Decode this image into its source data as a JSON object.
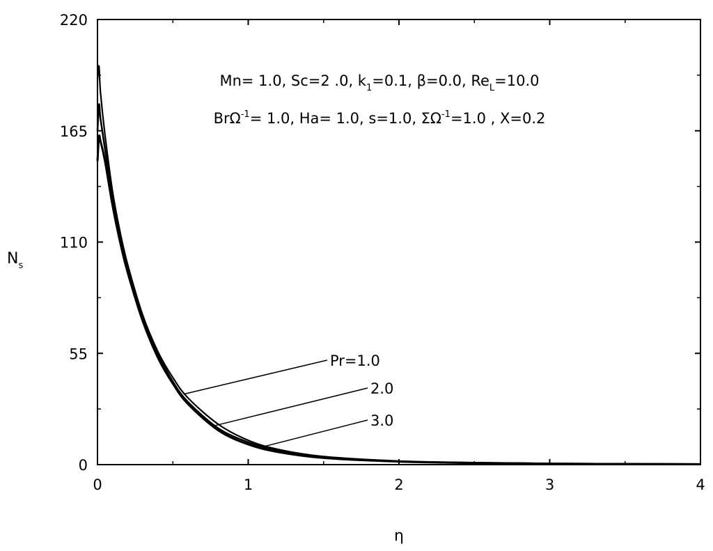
{
  "chart_data": {
    "type": "line",
    "xlabel": "η",
    "ylabel": "N",
    "ylabel_sub": "s",
    "xlim": [
      0,
      4
    ],
    "ylim": [
      0,
      220
    ],
    "xticks": [
      0,
      1,
      2,
      3,
      4
    ],
    "yticks": [
      0,
      55,
      110,
      165,
      220
    ],
    "grid": false,
    "legend": "none",
    "annotation_lines": [
      [
        {
          "t": "Mn= 1.0, Sc=2 .0, k"
        },
        {
          "t": "1",
          "sub": true
        },
        {
          "t": "=0.1, β=0.0, Re"
        },
        {
          "t": "L",
          "sub": true
        },
        {
          "t": "=10.0"
        }
      ],
      [
        {
          "t": "BrΩ"
        },
        {
          "t": "-1",
          "sup": true
        },
        {
          "t": "= 1.0, Ha= 1.0, s=1.0, ΣΩ"
        },
        {
          "t": "-1",
          "sup": true
        },
        {
          "t": "=1.0 , X=0.2"
        }
      ]
    ],
    "series": [
      {
        "name": "Pr=1.0",
        "x": [
          0,
          0.01,
          0.02,
          0.05,
          0.1,
          0.15,
          0.2,
          0.3,
          0.4,
          0.5,
          0.6,
          0.8,
          1.0,
          1.2,
          1.5,
          2.0,
          2.5,
          3.0,
          3.5,
          4.0
        ],
        "y": [
          190,
          197,
          184,
          163,
          135,
          115,
          99,
          74,
          56,
          43,
          33,
          20,
          12,
          7.5,
          4,
          1.8,
          1.0,
          0.6,
          0.4,
          0.3
        ]
      },
      {
        "name": "2.0",
        "x": [
          0,
          0.01,
          0.02,
          0.05,
          0.1,
          0.15,
          0.2,
          0.3,
          0.4,
          0.5,
          0.6,
          0.8,
          1.0,
          1.2,
          1.5,
          2.0,
          2.5,
          3.0,
          3.5,
          4.0
        ],
        "y": [
          165,
          178,
          171,
          156,
          131,
          112,
          97,
          73,
          55,
          41,
          31,
          18,
          11,
          6.8,
          3.6,
          1.6,
          0.9,
          0.5,
          0.35,
          0.25
        ]
      },
      {
        "name": "3.0",
        "x": [
          0,
          0.01,
          0.02,
          0.05,
          0.1,
          0.15,
          0.2,
          0.3,
          0.4,
          0.5,
          0.6,
          0.8,
          1.0,
          1.2,
          1.5,
          2.0,
          2.5,
          3.0,
          3.5,
          4.0
        ],
        "y": [
          150,
          162,
          160,
          150,
          128,
          110,
          95,
          71,
          53,
          40,
          30,
          17,
          10,
          6.2,
          3.3,
          1.5,
          0.8,
          0.45,
          0.3,
          0.2
        ]
      }
    ],
    "curve_labels": [
      {
        "text": "Pr=1.0",
        "series": "Pr=1.0",
        "at_x": 0.58
      },
      {
        "text": "2.0",
        "series": "2.0",
        "at_x": 0.78
      },
      {
        "text": "3.0",
        "series": "3.0",
        "at_x": 1.08
      }
    ]
  }
}
